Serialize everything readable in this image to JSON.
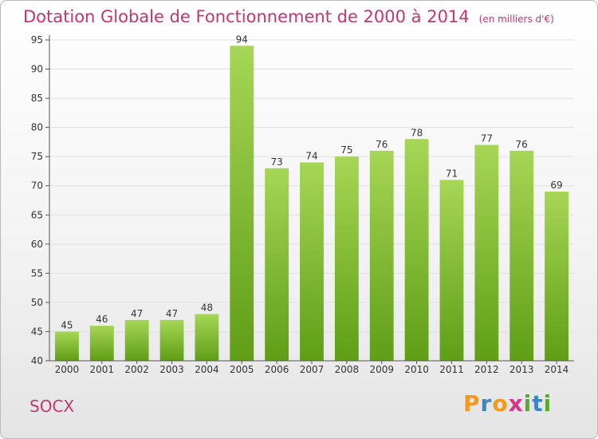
{
  "header": {
    "title": "Dotation Globale de Fonctionnement de 2000 à 2014",
    "unit": "(en milliers d'€)"
  },
  "footer": {
    "commune": "SOCX",
    "logo_letters": [
      "P",
      "r",
      "o",
      "x",
      "i",
      "t",
      "i"
    ],
    "logo_colors": [
      "#f39a1c",
      "#3d86c6",
      "#f39a1c",
      "#d8348b",
      "#5aa834",
      "#3d86c6",
      "#5aa834"
    ]
  },
  "colors": {
    "bar_top": "#a6d655",
    "bar_bottom": "#5f9e16",
    "axis": "#555555",
    "grid": "#e0e0e0"
  },
  "chart_data": {
    "type": "bar",
    "title": "Dotation Globale de Fonctionnement de 2000 à 2014",
    "subtitle": "(en milliers d'€)",
    "xlabel": "",
    "ylabel": "",
    "categories": [
      "2000",
      "2001",
      "2002",
      "2003",
      "2004",
      "2005",
      "2006",
      "2007",
      "2008",
      "2009",
      "2010",
      "2011",
      "2012",
      "2013",
      "2014"
    ],
    "values": [
      45,
      46,
      47,
      47,
      48,
      94,
      73,
      74,
      75,
      76,
      78,
      71,
      77,
      76,
      69
    ],
    "ylim": [
      40,
      95
    ],
    "yticks": [
      40,
      45,
      50,
      55,
      60,
      65,
      70,
      75,
      80,
      85,
      90,
      95
    ],
    "grid": true,
    "legend": "none"
  }
}
